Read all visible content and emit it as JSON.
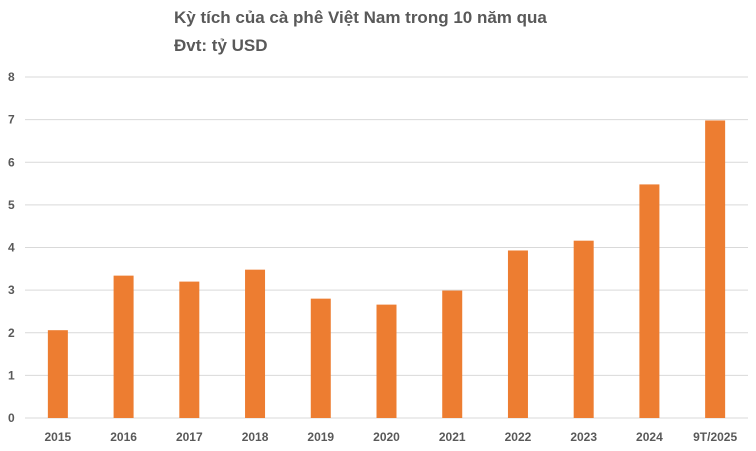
{
  "chart_data": {
    "type": "bar",
    "title": "Kỳ tích của cà phê Việt Nam trong 10 năm qua",
    "subtitle": "Đvt: tỷ USD",
    "xlabel": "",
    "ylabel": "",
    "categories": [
      "2015",
      "2016",
      "2017",
      "2018",
      "2019",
      "2020",
      "2021",
      "2022",
      "2023",
      "2024",
      "9T/2025"
    ],
    "values": [
      2.06,
      3.34,
      3.2,
      3.48,
      2.8,
      2.66,
      2.99,
      3.93,
      4.16,
      5.48,
      6.98
    ],
    "ylim": [
      0,
      8
    ],
    "yticks": [
      "0",
      "1",
      "2",
      "3",
      "4",
      "5",
      "6",
      "7",
      "8"
    ],
    "grid": true,
    "legend": "none",
    "colors": {
      "bar": "#ED7D31",
      "grid": "#D9D9D9",
      "text": "#595959"
    }
  }
}
